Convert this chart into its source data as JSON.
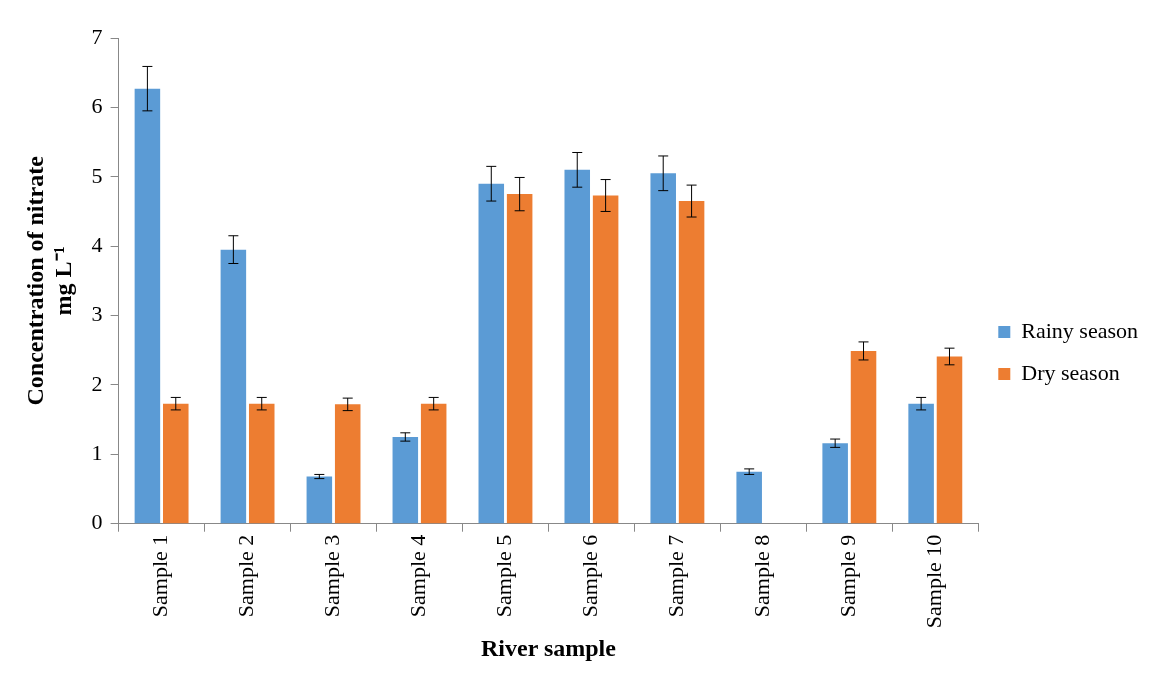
{
  "chart_data": {
    "type": "bar",
    "xlabel": "River sample",
    "ylabel": "Concentration of nitrate\nmg L⁻¹",
    "categories": [
      "Sample 1",
      "Sample 2",
      "Sample 3",
      "Sample 4",
      "Sample 5",
      "Sample 6",
      "Sample 7",
      "Sample 8",
      "Sample 9",
      "Sample 10"
    ],
    "series": [
      {
        "name": "Rainy season",
        "color": "#5b9bd5",
        "values": [
          6.27,
          3.95,
          0.68,
          1.25,
          4.9,
          5.1,
          5.05,
          0.75,
          1.16,
          1.73
        ],
        "errors": [
          0.32,
          0.2,
          0.03,
          0.06,
          0.25,
          0.25,
          0.25,
          0.04,
          0.06,
          0.09
        ]
      },
      {
        "name": "Dry season",
        "color": "#ed7d31",
        "values": [
          1.73,
          1.73,
          1.72,
          1.73,
          4.75,
          4.73,
          4.65,
          0,
          2.49,
          2.41
        ],
        "errors": [
          0.09,
          0.09,
          0.09,
          0.09,
          0.24,
          0.23,
          0.23,
          null,
          0.13,
          0.12
        ]
      }
    ],
    "ylim": [
      0,
      7
    ],
    "yticks": [
      0,
      1,
      2,
      3,
      4,
      5,
      6,
      7
    ],
    "grid": false,
    "legend": "right"
  }
}
